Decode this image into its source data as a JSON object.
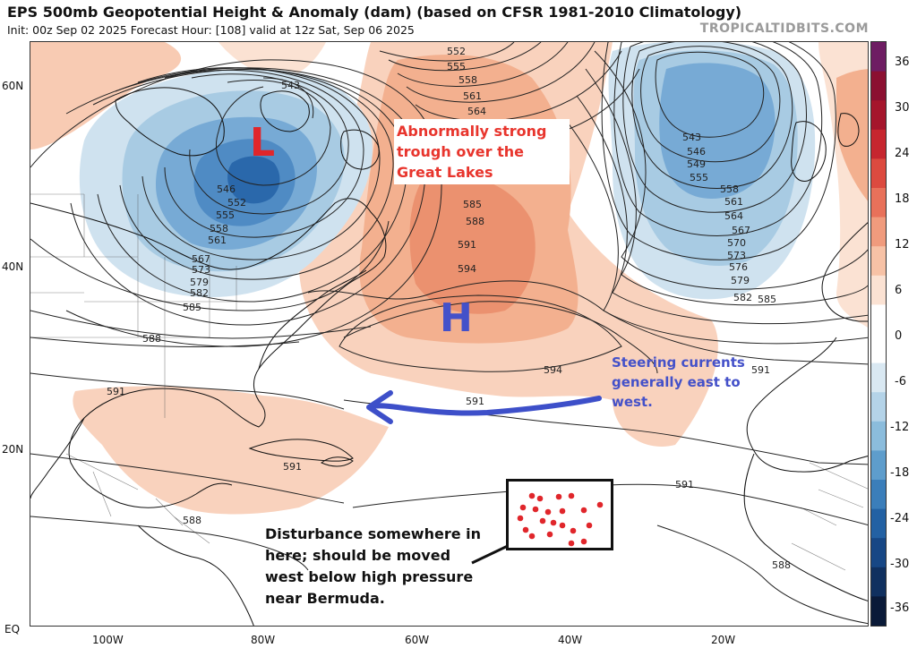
{
  "header": {
    "title": "EPS 500mb Geopotential Height & Anomaly (dam) (based on CFSR 1981-2010 Climatology)",
    "subtitle": "Init: 00z Sep 02 2025   Forecast Hour: [108]   valid at 12z Sat, Sep 06 2025",
    "watermark": "TROPICALTIDBITS.COM"
  },
  "axes": {
    "lat_labels": [
      "60N",
      "40N",
      "20N",
      "EQ"
    ],
    "lon_labels": [
      "100W",
      "80W",
      "60W",
      "40W",
      "20W"
    ]
  },
  "colorbar": {
    "labels": [
      "36",
      "30",
      "24",
      "18",
      "12",
      "6",
      "0",
      "-6",
      "-12",
      "-18",
      "-24",
      "-30",
      "-36"
    ],
    "colors_top_to_bottom": [
      "#6e1d63",
      "#8b1031",
      "#a5162c",
      "#c6262f",
      "#dc4a3f",
      "#e8715a",
      "#f09b7d",
      "#f7c2a6",
      "#fbe2d3",
      "#ffffff",
      "#ffffff",
      "#d9e8f2",
      "#b4d3e8",
      "#8bbcdc",
      "#5e9dcc",
      "#3b7eba",
      "#2361a3",
      "#174785",
      "#10305f",
      "#0a1a38"
    ]
  },
  "annotations": {
    "trough": "Abnormally strong trough over the Great Lakes",
    "steering": "Steering currents generally east to west.",
    "disturbance": "Disturbance somewhere in here; should be moved west below high pressure near Bermuda.",
    "low": "L",
    "high": "H"
  },
  "contour_labels": [
    "543",
    "546",
    "552",
    "555",
    "558",
    "561",
    "567",
    "573",
    "579",
    "582",
    "585",
    "588",
    "591",
    "552",
    "555",
    "558",
    "561",
    "564",
    "585",
    "588",
    "591",
    "594",
    "594",
    "591",
    "591",
    "543",
    "546",
    "549",
    "555",
    "558",
    "561",
    "564",
    "567",
    "570",
    "573",
    "576",
    "579",
    "582",
    "585",
    "591",
    "591",
    "588",
    "588"
  ]
}
